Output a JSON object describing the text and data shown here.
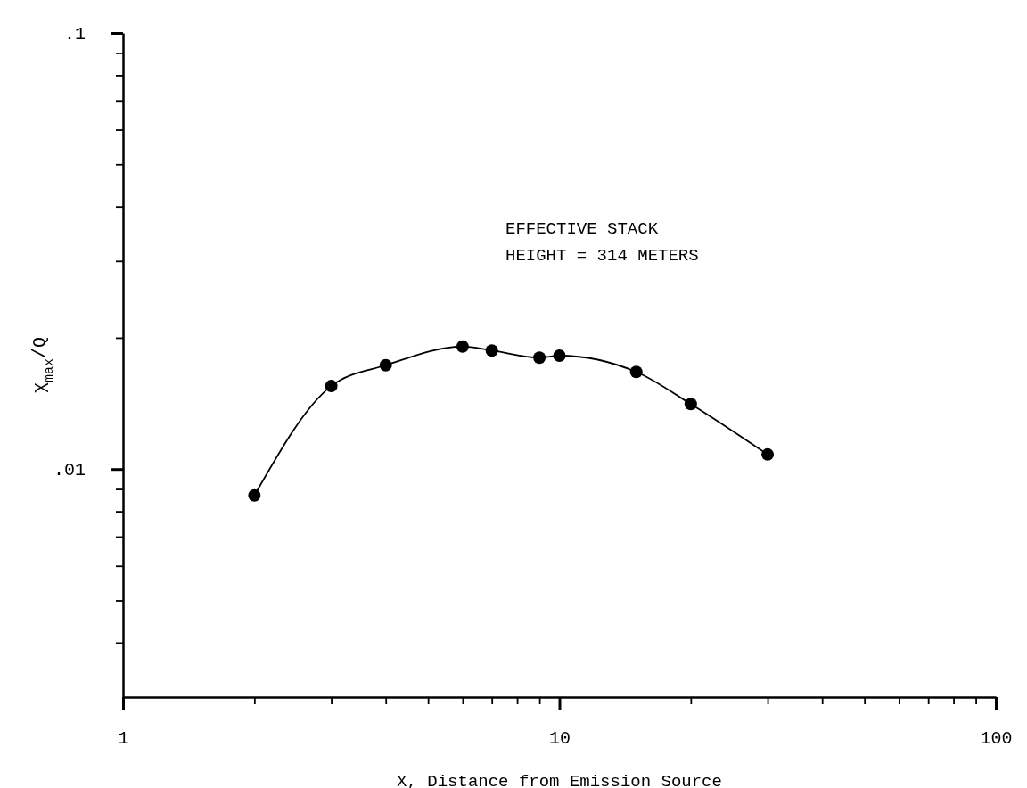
{
  "chart_data": {
    "type": "line",
    "xlabel": "X, Distance from Emission Source",
    "ylabel": "χ$_{max}$/Q",
    "log": "xy",
    "marker": "circle",
    "line_style": "solid",
    "x": [
      2,
      3,
      4,
      6,
      7,
      9,
      10,
      15,
      20,
      30
    ],
    "series": [
      {
        "color": "#000000",
        "values": [
          0.0087,
          0.0155,
          0.0173,
          0.0191,
          0.0187,
          0.018,
          0.0182,
          0.0167,
          0.0141,
          0.0108
        ]
      }
    ],
    "xlim": [
      1,
      100
    ],
    "ylim": [
      0.003,
      0.1
    ],
    "xticks": [
      1,
      {
        "value": 2,
        "label": null
      },
      {
        "value": 3,
        "label": null
      },
      {
        "value": 4,
        "label": null
      },
      {
        "value": 5,
        "label": null
      },
      {
        "value": 6,
        "label": null
      },
      {
        "value": 7,
        "label": null
      },
      {
        "value": 8,
        "label": null
      },
      {
        "value": 9,
        "label": null
      },
      10,
      {
        "value": 20,
        "label": null
      },
      {
        "value": 30,
        "label": null
      },
      {
        "value": 40,
        "label": null
      },
      {
        "value": 50,
        "label": null
      },
      {
        "value": 60,
        "label": null
      },
      {
        "value": 70,
        "label": null
      },
      {
        "value": 80,
        "label": null
      },
      {
        "value": 90,
        "label": null
      },
      100
    ],
    "yticks": [
      {
        "value": 0.004,
        "label": null
      },
      {
        "value": 0.005,
        "label": null
      },
      {
        "value": 0.006,
        "label": null
      },
      {
        "value": 0.007,
        "label": null
      },
      {
        "value": 0.008,
        "label": null
      },
      {
        "value": 0.009,
        "label": null
      },
      {
        "value": 0.01,
        "label": ".01"
      },
      {
        "value": 0.02,
        "label": null
      },
      {
        "value": 0.03,
        "label": null
      },
      {
        "value": 0.04,
        "label": null
      },
      {
        "value": 0.05,
        "label": null
      },
      {
        "value": 0.06,
        "label": null
      },
      {
        "value": 0.07,
        "label": null
      },
      {
        "value": 0.08,
        "label": null
      },
      {
        "value": 0.09,
        "label": null
      },
      {
        "value": 0.1,
        "label": ".1"
      }
    ],
    "annotations": [
      "EFFECTIVE STACK\nHEIGHT = 314 METERS"
    ]
  }
}
